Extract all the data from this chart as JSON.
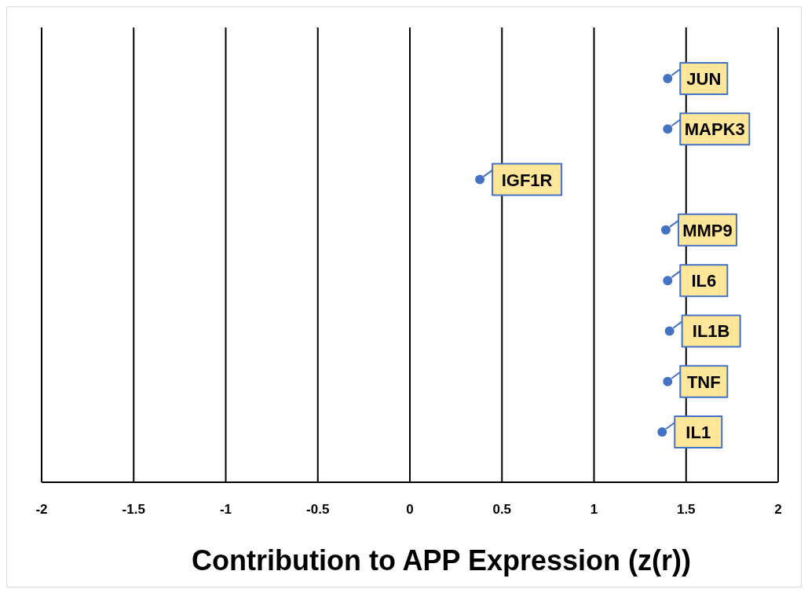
{
  "chart_data": {
    "type": "scatter",
    "orientation": "horizontal",
    "xlabel": "Contribution to APP Expression (z(r))",
    "categories": [
      "JUN",
      "MAPK3",
      "IGF1R",
      "MMP9",
      "IL6",
      "IL1B",
      "TNF",
      "IL1"
    ],
    "values": [
      1.4,
      1.4,
      0.38,
      1.39,
      1.4,
      1.41,
      1.4,
      1.37
    ],
    "color": "#4472c4",
    "marker": "circle",
    "grid": "x",
    "tick_labels": "x",
    "xlim": [
      -2,
      2
    ],
    "xticks": [
      -2,
      -1.5,
      -1,
      -0.5,
      0,
      0.5,
      1,
      1.5,
      2
    ]
  }
}
